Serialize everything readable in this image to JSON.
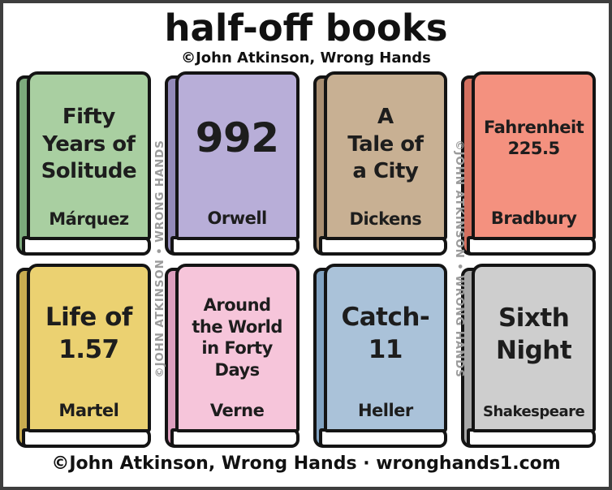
{
  "header": {
    "title": "half-off books",
    "byline": "©John Atkinson, Wrong Hands"
  },
  "watermark": {
    "left": "©JOHN ATKINSON • WRONG HANDS",
    "right": "©JOHN ATKINSON • WRONG HANDS"
  },
  "footer": {
    "credit": "©John Atkinson, Wrong Hands · wronghands1.com"
  },
  "books": [
    {
      "title": "Fifty\nYears of\nSolitude",
      "author": "Márquez",
      "cover_color": "#a9cfa1",
      "spine_color": "#7ca97c"
    },
    {
      "title": "992",
      "author": "Orwell",
      "cover_color": "#b8aed8",
      "spine_color": "#938ab9"
    },
    {
      "title": "A\nTale of\na City",
      "author": "Dickens",
      "cover_color": "#c8b093",
      "spine_color": "#a98f72"
    },
    {
      "title": "Fahrenheit\n225.5",
      "author": "Bradbury",
      "cover_color": "#f4917f",
      "spine_color": "#d4705f"
    },
    {
      "title": "Life of\n1.57",
      "author": "Martel",
      "cover_color": "#ebd171",
      "spine_color": "#c9ac50"
    },
    {
      "title": "Around\nthe World\nin Forty\nDays",
      "author": "Verne",
      "cover_color": "#f6c5da",
      "spine_color": "#dd9fbe"
    },
    {
      "title": "Catch-\n11",
      "author": "Heller",
      "cover_color": "#aac2d9",
      "spine_color": "#82a3c2"
    },
    {
      "title": "Sixth\nNight",
      "author": "Shakespeare",
      "cover_color": "#cecece",
      "spine_color": "#a8a8a8"
    }
  ]
}
